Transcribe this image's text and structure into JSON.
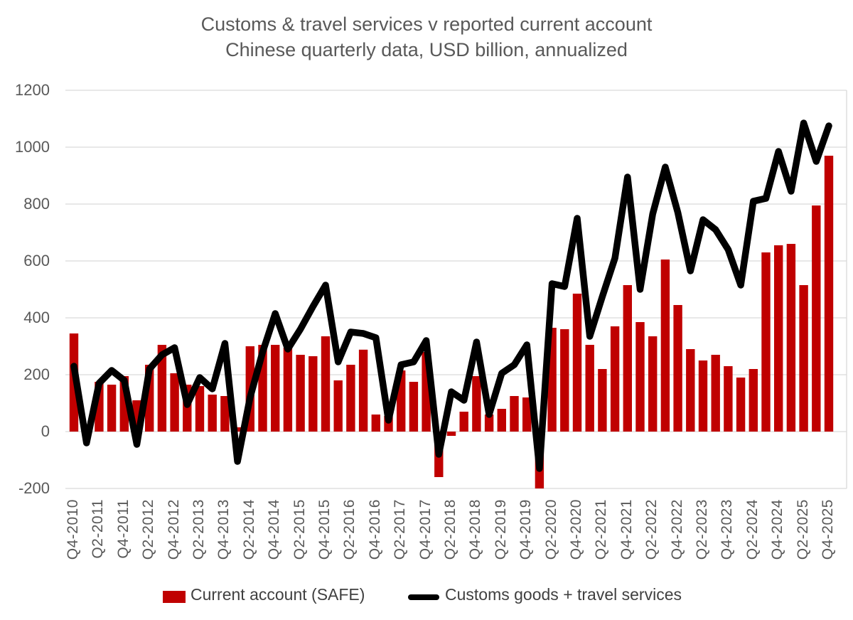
{
  "title": {
    "line1": "Customs & travel services v reported current account",
    "line2": "Chinese quarterly data, USD billion, annualized"
  },
  "legend": {
    "bar_label": "Current account (SAFE)",
    "line_label": "Customs goods + travel services"
  },
  "colors": {
    "bar": "#C00000",
    "line": "#000000",
    "gridline": "#D9D9D9",
    "axis_text": "#595959",
    "legend_text": "#404040",
    "background": "#FFFFFF"
  },
  "chart_data": {
    "type": "bar+line combo",
    "title": "Customs & travel services v reported current account",
    "subtitle": "Chinese quarterly data, USD billion, annualized",
    "ylim": [
      -200,
      1200
    ],
    "y_ticks": [
      1200,
      1000,
      800,
      600,
      400,
      200,
      0,
      -200
    ],
    "grid": true,
    "legend_position": "bottom",
    "categories": [
      "Q4-2010",
      "Q1-2011",
      "Q2-2011",
      "Q3-2011",
      "Q4-2011",
      "Q1-2012",
      "Q2-2012",
      "Q3-2012",
      "Q4-2012",
      "Q1-2013",
      "Q2-2013",
      "Q3-2013",
      "Q4-2013",
      "Q1-2014",
      "Q2-2014",
      "Q3-2014",
      "Q4-2014",
      "Q1-2015",
      "Q2-2015",
      "Q3-2015",
      "Q4-2015",
      "Q1-2016",
      "Q2-2016",
      "Q3-2016",
      "Q4-2016",
      "Q1-2017",
      "Q2-2017",
      "Q3-2017",
      "Q4-2017",
      "Q1-2018",
      "Q2-2018",
      "Q3-2018",
      "Q4-2018",
      "Q1-2019",
      "Q2-2019",
      "Q3-2019",
      "Q4-2019",
      "Q1-2020",
      "Q2-2020",
      "Q3-2020",
      "Q4-2020",
      "Q1-2021",
      "Q2-2021",
      "Q3-2021",
      "Q4-2021",
      "Q1-2022",
      "Q2-2022",
      "Q3-2022",
      "Q4-2022",
      "Q1-2023",
      "Q2-2023",
      "Q3-2023",
      "Q4-2023",
      "Q1-2024",
      "Q2-2024",
      "Q3-2024",
      "Q4-2024",
      "Q1-2025",
      "Q2-2025",
      "Q3-2025",
      "Q4-2025"
    ],
    "x_tick_labels": [
      "Q4-2010",
      "Q2-2011",
      "Q4-2011",
      "Q2-2012",
      "Q4-2012",
      "Q2-2013",
      "Q4-2013",
      "Q2-2014",
      "Q4-2014",
      "Q2-2015",
      "Q4-2015",
      "Q2-2016",
      "Q4-2016",
      "Q2-2017",
      "Q4-2017",
      "Q2-2018",
      "Q4-2018",
      "Q2-2019",
      "Q4-2019",
      "Q2-2020",
      "Q4-2020",
      "Q2-2021",
      "Q4-2021",
      "Q2-2022",
      "Q4-2022",
      "Q2-2023",
      "Q4-2023",
      "Q2-2024",
      "Q4-2024",
      "Q2-2025",
      "Q4-2025"
    ],
    "series": [
      {
        "name": "Current account (SAFE)",
        "type": "bar",
        "color": "#C00000",
        "values": [
          345,
          20,
          175,
          165,
          195,
          110,
          235,
          305,
          205,
          165,
          160,
          130,
          125,
          15,
          300,
          305,
          305,
          295,
          270,
          265,
          335,
          180,
          235,
          288,
          60,
          55,
          215,
          175,
          280,
          -160,
          -15,
          70,
          195,
          60,
          80,
          125,
          120,
          -200,
          365,
          360,
          485,
          305,
          220,
          370,
          515,
          385,
          335,
          605,
          445,
          290,
          250,
          270,
          230,
          190,
          220,
          630,
          655,
          660,
          515,
          795,
          970
        ]
      },
      {
        "name": "Customs goods + travel services",
        "type": "line",
        "color": "#000000",
        "values": [
          230,
          -40,
          170,
          215,
          180,
          -45,
          220,
          270,
          295,
          95,
          190,
          150,
          310,
          -105,
          120,
          280,
          415,
          290,
          360,
          440,
          515,
          245,
          350,
          345,
          330,
          40,
          235,
          245,
          320,
          -80,
          140,
          110,
          315,
          60,
          205,
          235,
          305,
          -130,
          520,
          510,
          750,
          335,
          475,
          610,
          895,
          500,
          765,
          930,
          770,
          565,
          745,
          710,
          640,
          515,
          810,
          820,
          985,
          845,
          1085,
          950,
          1075
        ]
      }
    ]
  }
}
